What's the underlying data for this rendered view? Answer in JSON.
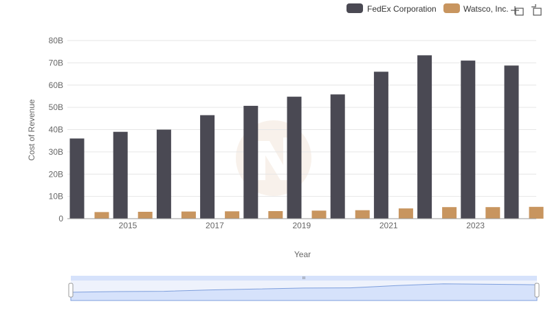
{
  "chart_data": {
    "type": "bar",
    "title": "",
    "xlabel": "Year",
    "ylabel": "Cost of Revenue",
    "x": [
      2014,
      2015,
      2016,
      2017,
      2018,
      2019,
      2020,
      2021,
      2022,
      2023,
      2024
    ],
    "x_tick_labels": [
      "2015",
      "2017",
      "2019",
      "2021",
      "2023"
    ],
    "y_tick_labels": [
      "0",
      "10B",
      "20B",
      "30B",
      "40B",
      "50B",
      "60B",
      "70B",
      "80B"
    ],
    "ylim": [
      0,
      80000000000
    ],
    "grid": true,
    "legend_position": "top-right",
    "series": [
      {
        "name": "FedEx Corporation",
        "color": "#4a4953",
        "values": [
          36000000000,
          39000000000,
          40000000000,
          46500000000,
          50700000000,
          54800000000,
          55800000000,
          66000000000,
          73400000000,
          71000000000,
          68800000000
        ]
      },
      {
        "name": "Watsco, Inc.",
        "color": "#c8955f",
        "values": [
          2950000000,
          3100000000,
          3200000000,
          3300000000,
          3400000000,
          3600000000,
          3800000000,
          4600000000,
          5200000000,
          5200000000,
          5300000000
        ]
      }
    ]
  },
  "toolbar": {
    "zoom_icon": "zoom-icon",
    "reset_icon": "reset-zoom-icon"
  },
  "navigator": {
    "handle_glyph": "III",
    "colors": {
      "fill": "#d6e2fb",
      "line": "#7d9edc",
      "handle": "#ffffff"
    }
  }
}
